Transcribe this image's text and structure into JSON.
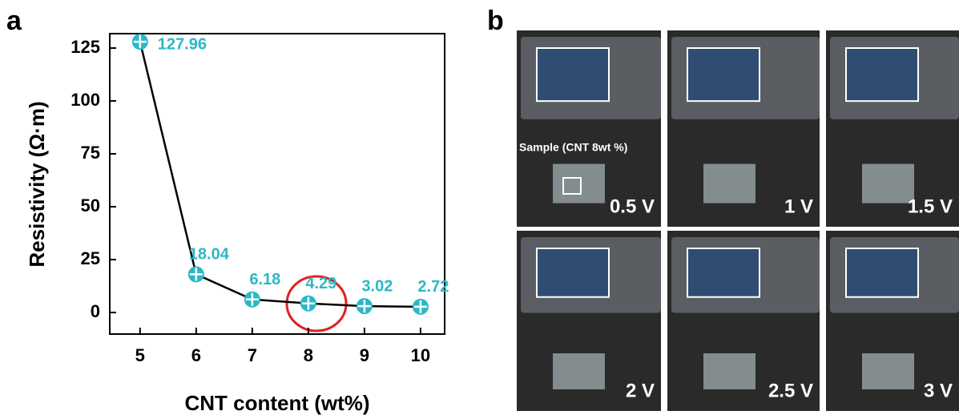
{
  "panel_labels": [
    "a",
    "b"
  ],
  "chart_data": {
    "type": "line",
    "ylabel": "Resistivity (Ω·m)",
    "xlabel": "CNT content (wt%)",
    "x": [
      5,
      6,
      7,
      8,
      9,
      10
    ],
    "values": [
      127.96,
      18.04,
      6.18,
      4.29,
      3.02,
      2.72
    ],
    "color": "#2bb8c6",
    "line_color": "#000000",
    "xlim": [
      4.46,
      10.43
    ],
    "xticks": [
      5,
      6,
      7,
      8,
      9,
      10
    ],
    "ylim": [
      -10.2,
      131.8
    ],
    "yticks": [
      0,
      25,
      50,
      75,
      100,
      125
    ]
  },
  "photos": {
    "sample_label": "Sample (CNT 8wt %)",
    "voltages": [
      "0.5 V",
      "1 V",
      "1.5 V",
      "2 V",
      "2.5 V",
      "3 V"
    ]
  }
}
